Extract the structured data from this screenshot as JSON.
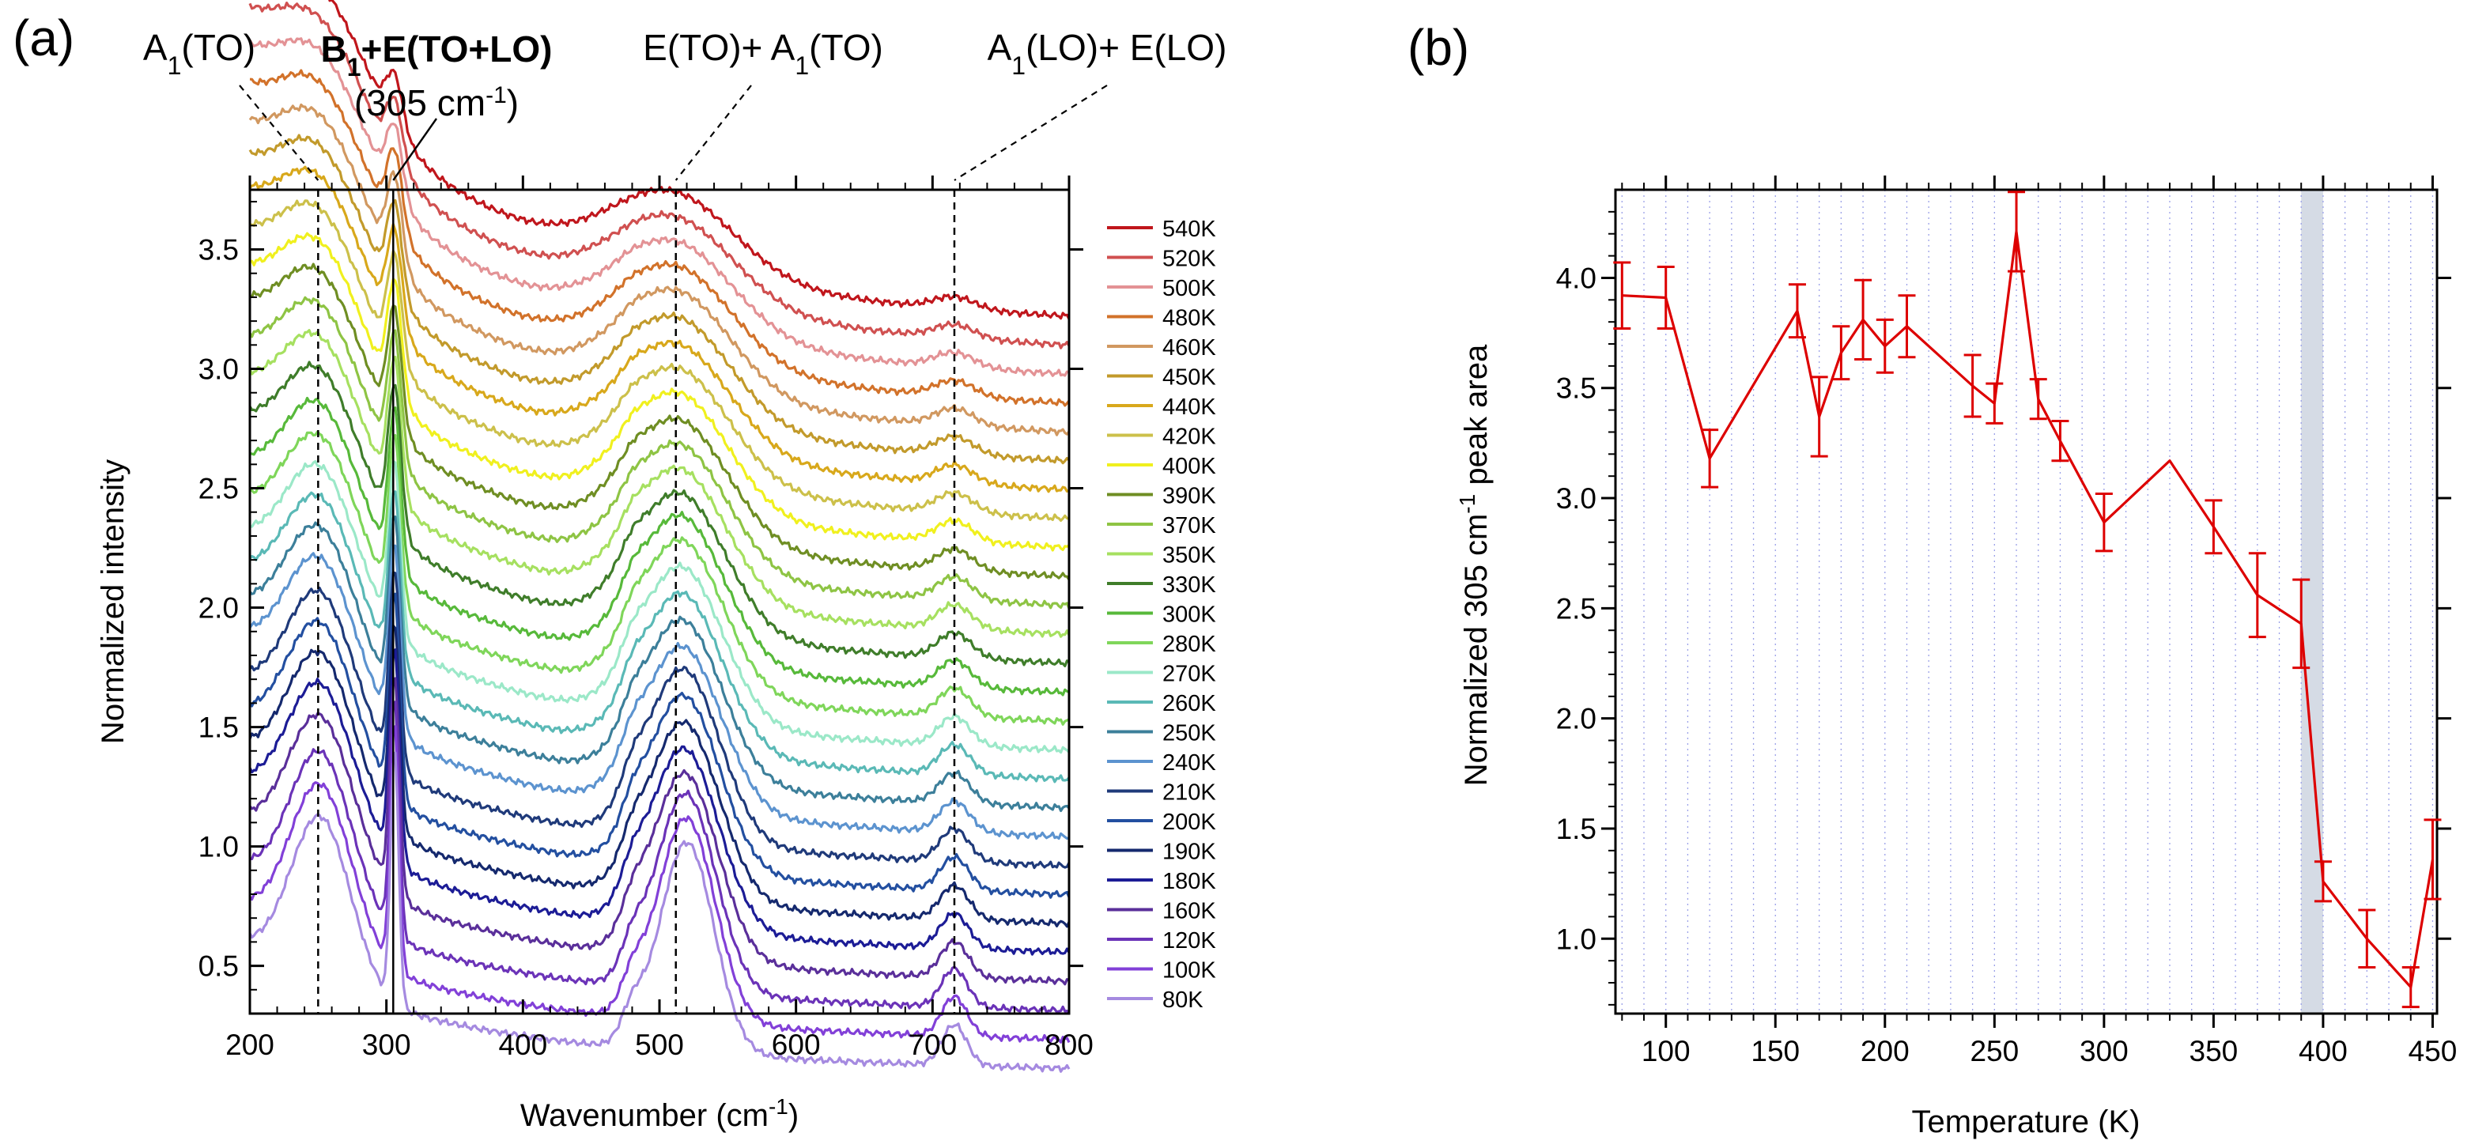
{
  "chart_data": [
    {
      "panel": "(a)",
      "type": "line",
      "xlabel": "Wavenumber (cm",
      "xlabel_sup": "-1",
      "xlabel_end": ")",
      "ylabel": "Normalized intensity",
      "xlim": [
        200,
        800
      ],
      "ylim": [
        0.3,
        3.75
      ],
      "x_ticks": [
        "200",
        "300",
        "400",
        "500",
        "600",
        "700",
        "800"
      ],
      "y_ticks": [
        "0.5",
        "1.0",
        "1.5",
        "2.0",
        "2.5",
        "3.0",
        "3.5"
      ],
      "peak_annotations": [
        {
          "label": "A",
          "sub": "1",
          "rest": "(TO)",
          "wavenumber": 250,
          "line": "dashed"
        },
        {
          "label": "B",
          "sub": "1",
          "rest": "+E(TO+LO)",
          "sub_line": "(305 cm",
          "sub_line_sup": "-1",
          "sub_line_end": ")",
          "wavenumber": 305,
          "line": "solid",
          "bold": true
        },
        {
          "label": "E(TO)+ A",
          "sub": "1",
          "rest": "(TO)",
          "wavenumber": 512,
          "line": "dashed"
        },
        {
          "label": "A",
          "sub": "1",
          "rest": "(LO)+ E(LO)",
          "wavenumber": 716,
          "line": "dashed"
        }
      ],
      "series": [
        {
          "name": "540K",
          "offset": 3.18,
          "color": "#c0161c"
        },
        {
          "name": "520K",
          "offset": 3.06,
          "color": "#d05050"
        },
        {
          "name": "500K",
          "offset": 2.94,
          "color": "#e39295"
        },
        {
          "name": "480K",
          "offset": 2.82,
          "color": "#d2722a"
        },
        {
          "name": "460K",
          "offset": 2.7,
          "color": "#d19860"
        },
        {
          "name": "450K",
          "offset": 2.58,
          "color": "#c29a2b"
        },
        {
          "name": "440K",
          "offset": 2.46,
          "color": "#d8a81b"
        },
        {
          "name": "420K",
          "offset": 2.34,
          "color": "#ccc04a"
        },
        {
          "name": "400K",
          "offset": 2.22,
          "color": "#f0f01e"
        },
        {
          "name": "390K",
          "offset": 2.1,
          "color": "#6f8e23"
        },
        {
          "name": "370K",
          "offset": 1.98,
          "color": "#8ec444"
        },
        {
          "name": "350K",
          "offset": 1.86,
          "color": "#a6e060"
        },
        {
          "name": "330K",
          "offset": 1.74,
          "color": "#3f7d2a"
        },
        {
          "name": "300K",
          "offset": 1.62,
          "color": "#57b93a"
        },
        {
          "name": "280K",
          "offset": 1.5,
          "color": "#7fd65a"
        },
        {
          "name": "270K",
          "offset": 1.38,
          "color": "#9be8c8"
        },
        {
          "name": "260K",
          "offset": 1.26,
          "color": "#5ab9b6"
        },
        {
          "name": "250K",
          "offset": 1.14,
          "color": "#3c7f9a"
        },
        {
          "name": "240K",
          "offset": 1.02,
          "color": "#5c93cf"
        },
        {
          "name": "210K",
          "offset": 0.9,
          "color": "#1f3a7a"
        },
        {
          "name": "200K",
          "offset": 0.78,
          "color": "#234fa0"
        },
        {
          "name": "190K",
          "offset": 0.66,
          "color": "#15296e"
        },
        {
          "name": "180K",
          "offset": 0.54,
          "color": "#1c1c96"
        },
        {
          "name": "160K",
          "offset": 0.42,
          "color": "#5a2f9a"
        },
        {
          "name": "120K",
          "offset": 0.3,
          "color": "#6b33b8"
        },
        {
          "name": "100K",
          "offset": 0.18,
          "color": "#8240d8"
        },
        {
          "name": "80K",
          "offset": 0.06,
          "color": "#a58ae0"
        }
      ]
    },
    {
      "panel": "(b)",
      "type": "line",
      "xlabel": "Temperature (K)",
      "ylabel_start": "Normalized 305 cm",
      "ylabel_sup": "-1",
      "ylabel_end": " peak area",
      "xlim": [
        77,
        452
      ],
      "ylim": [
        0.66,
        4.4
      ],
      "x_ticks": [
        "100",
        "150",
        "200",
        "250",
        "300",
        "350",
        "400",
        "450"
      ],
      "y_ticks": [
        "1.0",
        "1.5",
        "2.0",
        "2.5",
        "3.0",
        "3.5",
        "4.0"
      ],
      "color": "#dd0000",
      "shaded_band": [
        390,
        400
      ],
      "points": [
        {
          "x": 80,
          "y": 3.92,
          "err": 0.15
        },
        {
          "x": 100,
          "y": 3.91,
          "err": 0.14
        },
        {
          "x": 120,
          "y": 3.18,
          "err": 0.13
        },
        {
          "x": 160,
          "y": 3.85,
          "err": 0.12
        },
        {
          "x": 170,
          "y": 3.37,
          "err": 0.18
        },
        {
          "x": 180,
          "y": 3.66,
          "err": 0.12
        },
        {
          "x": 190,
          "y": 3.81,
          "err": 0.18
        },
        {
          "x": 200,
          "y": 3.69,
          "err": 0.12
        },
        {
          "x": 210,
          "y": 3.78,
          "err": 0.14
        },
        {
          "x": 240,
          "y": 3.51,
          "err": 0.14
        },
        {
          "x": 250,
          "y": 3.43,
          "err": 0.09
        },
        {
          "x": 260,
          "y": 4.21,
          "err": 0.18
        },
        {
          "x": 270,
          "y": 3.45,
          "err": 0.09
        },
        {
          "x": 280,
          "y": 3.26,
          "err": 0.09
        },
        {
          "x": 300,
          "y": 2.89,
          "err": 0.13
        },
        {
          "x": 330,
          "y": 3.17,
          "err": 0.0
        },
        {
          "x": 350,
          "y": 2.87,
          "err": 0.12
        },
        {
          "x": 370,
          "y": 2.56,
          "err": 0.19
        },
        {
          "x": 390,
          "y": 2.43,
          "err": 0.2
        },
        {
          "x": 400,
          "y": 1.26,
          "err": 0.09
        },
        {
          "x": 420,
          "y": 1.0,
          "err": 0.13
        },
        {
          "x": 440,
          "y": 0.78,
          "err": 0.09
        },
        {
          "x": 450,
          "y": 1.36,
          "err": 0.18
        }
      ]
    }
  ]
}
